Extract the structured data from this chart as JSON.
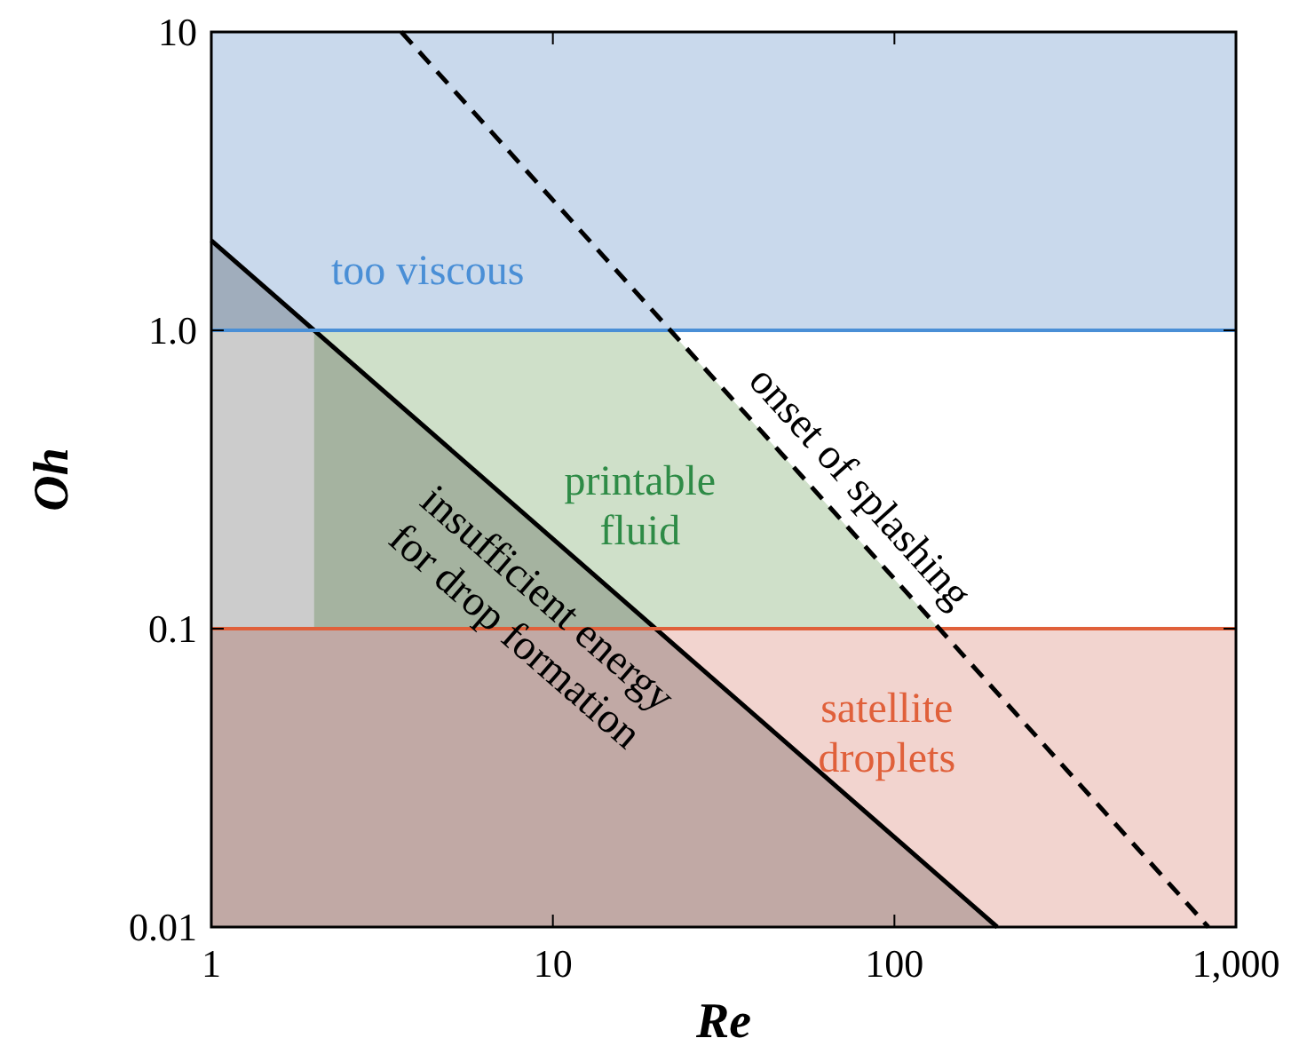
{
  "chart_data": {
    "type": "line",
    "xlabel": "Re",
    "ylabel": "Oh",
    "log": "xy",
    "xlim": [
      1,
      1000
    ],
    "ylim": [
      0.01,
      10
    ],
    "xticks": [
      1,
      10,
      100,
      {
        "value": 1000,
        "label": "1,000"
      }
    ],
    "yticks": [
      0.01,
      0.1,
      {
        "value": 1,
        "label": "1.0"
      },
      10
    ],
    "series": [
      {
        "type": "area",
        "color": "#cfe0c9",
        "x": [
          2,
          22,
          135
        ],
        "values": [
          1,
          1,
          0.1
        ]
      },
      {
        "type": "area",
        "color": "#000000",
        "x": [
          1,
          200
        ],
        "values": [
          2,
          0.01
        ],
        "line_style": "solid"
      },
      {
        "color": "#000000",
        "x": [
          3.6,
          830
        ],
        "values": [
          10,
          0.01
        ],
        "line_style": "dashed"
      }
    ],
    "bands": [
      {
        "axis": "y",
        "from": 1,
        "to": 10,
        "color": "#c9d9ec"
      },
      {
        "axis": "y",
        "from": 0.01,
        "to": 0.1,
        "color": "#f2d4cf"
      }
    ],
    "ref_lines": [
      {
        "axis": "y",
        "value": 1,
        "color": "#4a8fd6"
      },
      {
        "axis": "y",
        "value": 0.1,
        "color": "#e0603a"
      }
    ],
    "annotations": [
      "too viscous",
      "printable\nfluid",
      "satellite\ndroplets",
      "onset of splashing",
      "insufficient energy\nfor drop formation"
    ]
  }
}
